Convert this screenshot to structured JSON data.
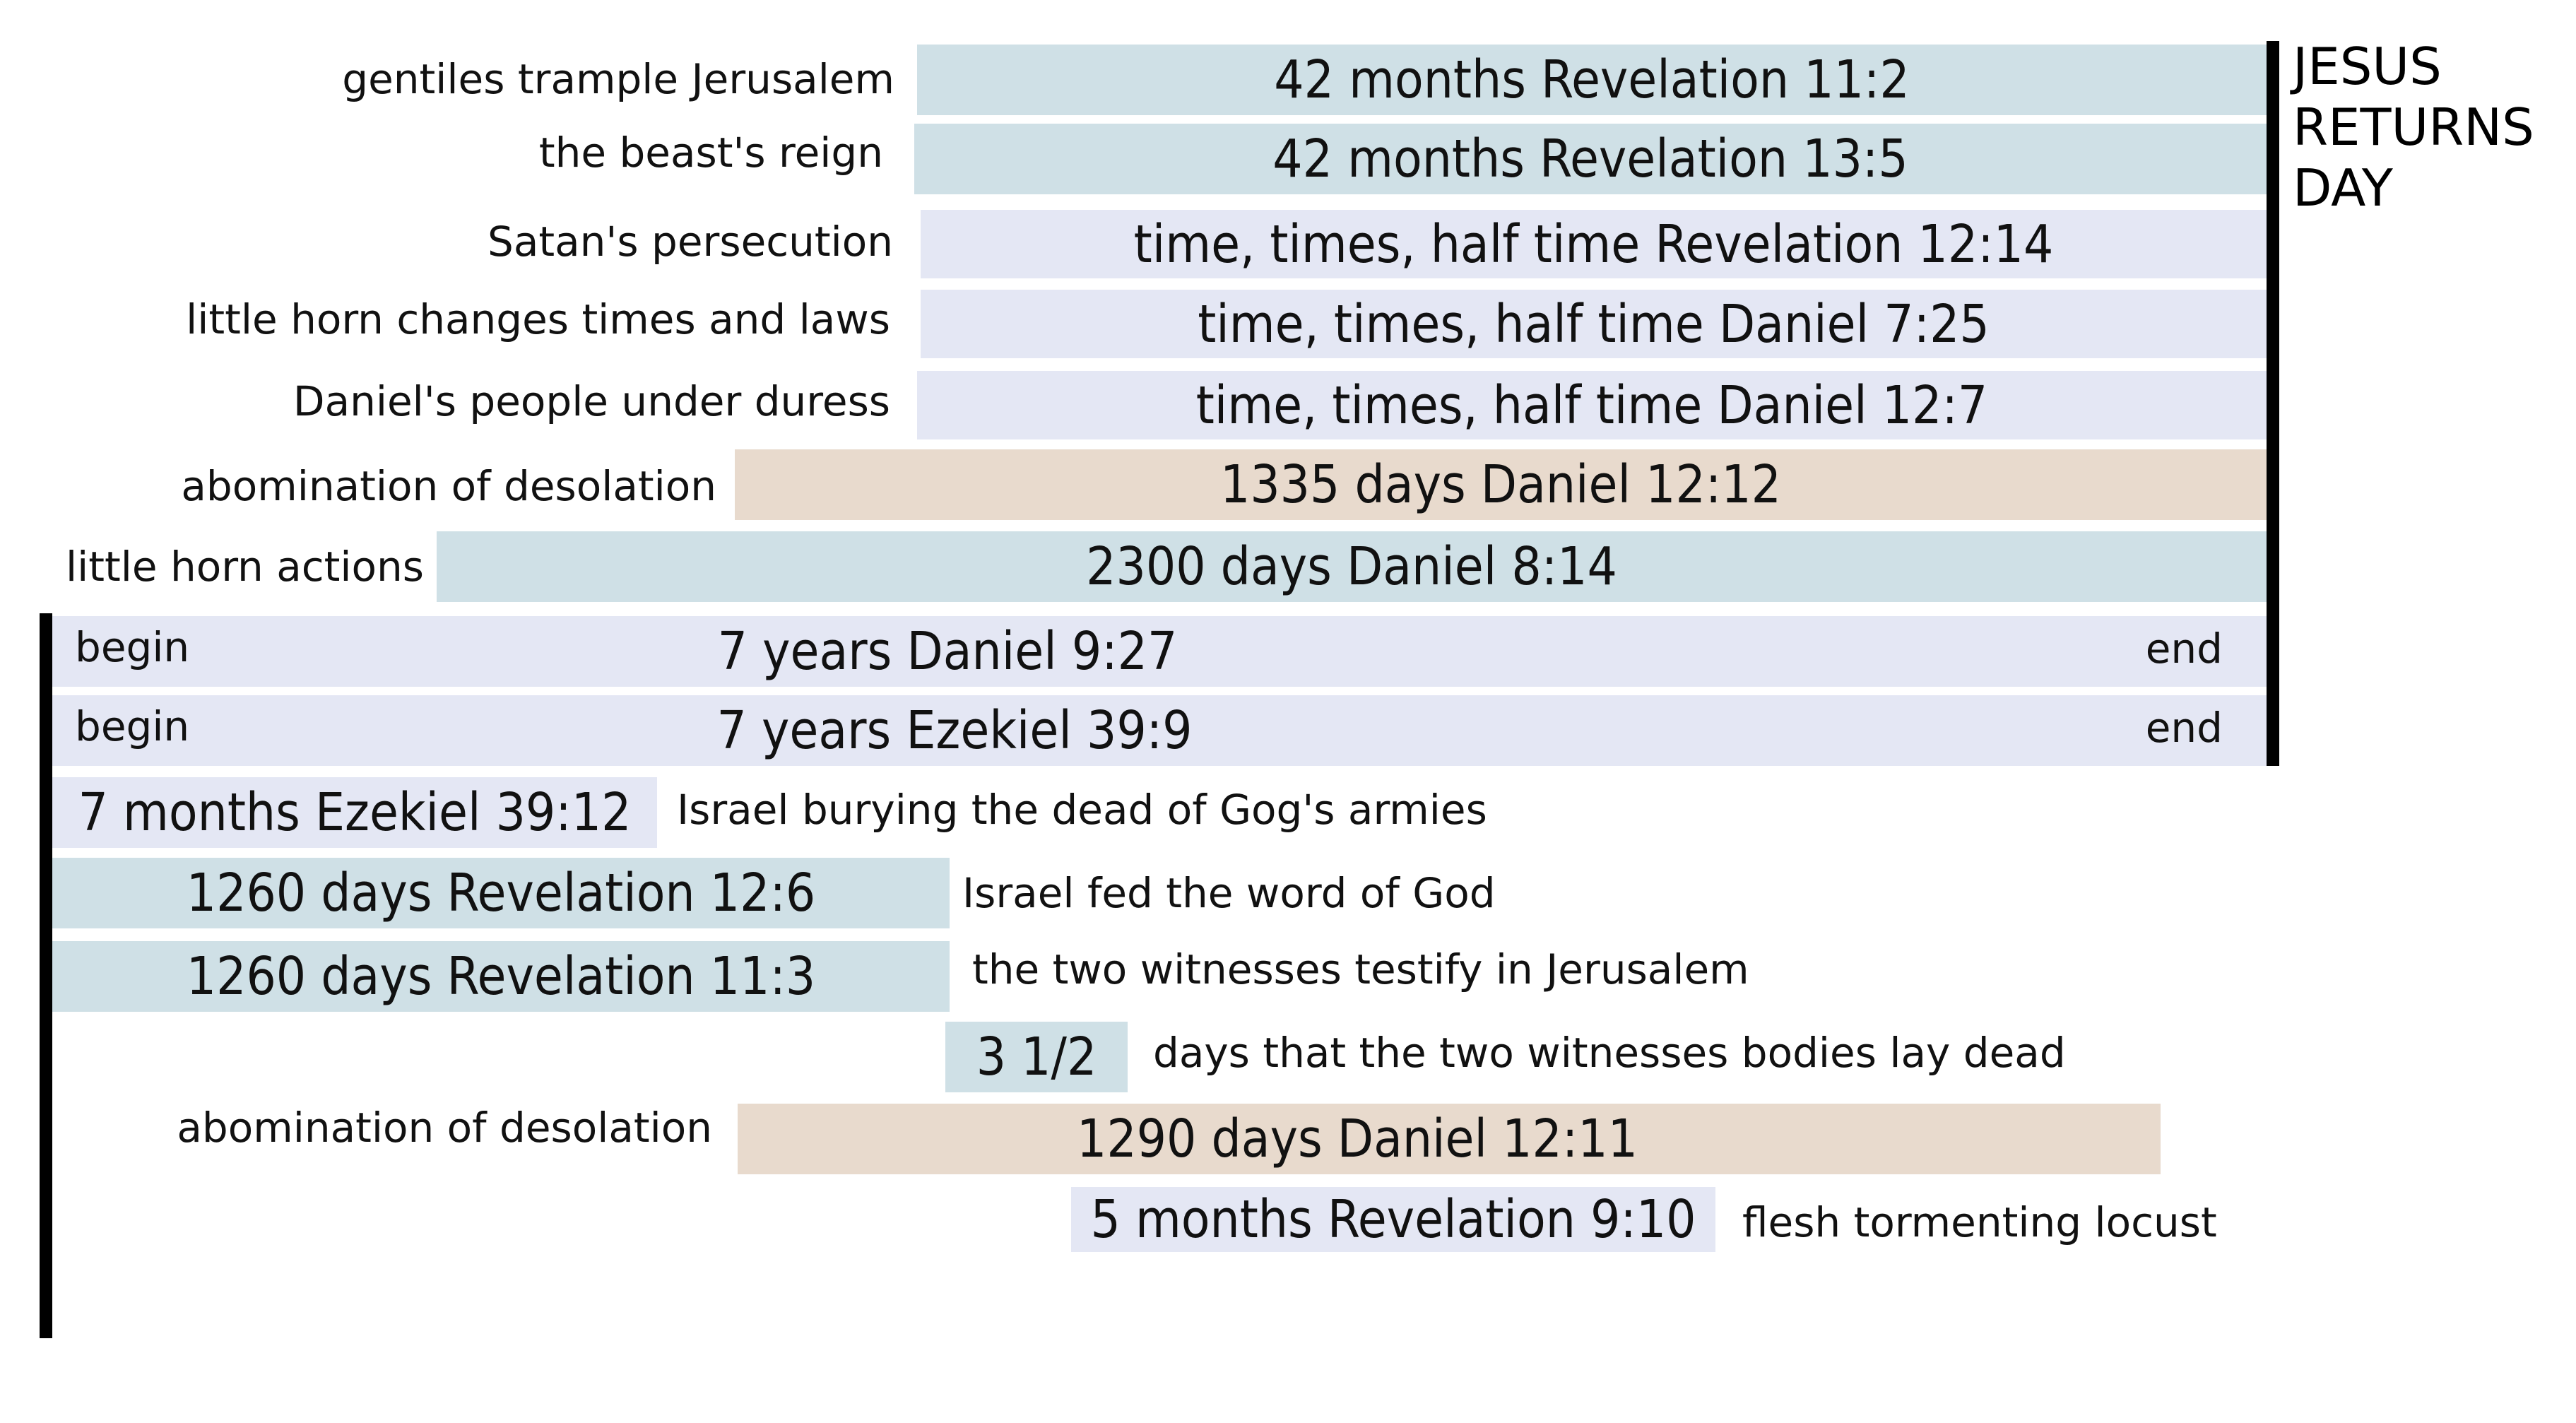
{
  "returns": {
    "lines": [
      "JESUS",
      "RETURNS",
      "DAY"
    ]
  },
  "rows": [
    {
      "id": "r1",
      "label": "gentiles trample Jerusalem",
      "bar": "42 months  Revelation 11:2",
      "color": "#cfe0e6"
    },
    {
      "id": "r2",
      "label": "the beast's reign",
      "bar": "42 months  Revelation 13:5",
      "color": "#cfe0e6"
    },
    {
      "id": "r3",
      "label": "Satan's persecution",
      "bar": "time, times, half time   Revelation 12:14",
      "color": "#e4e7f4"
    },
    {
      "id": "r4",
      "label": "little horn changes times and laws",
      "bar": "time, times, half time   Daniel  7:25",
      "color": "#e4e7f4"
    },
    {
      "id": "r5",
      "label": "Daniel's people under duress",
      "bar": "time, times, half time   Daniel 12:7",
      "color": "#e4e7f4"
    },
    {
      "id": "r6",
      "label": "abomination of desolation",
      "bar": "1335 days   Daniel 12:12",
      "color": "#e8dacd"
    },
    {
      "id": "r7",
      "label": "little horn actions",
      "bar": "2300 days  Daniel 8:14",
      "color": "#cfe0e6"
    },
    {
      "id": "r8",
      "begin": "begin",
      "bar": "7 years    Daniel 9:27",
      "end": "end",
      "color": "#e4e7f4"
    },
    {
      "id": "r9",
      "begin": "begin",
      "bar": "7 years    Ezekiel 39:9",
      "end": "end",
      "color": "#e4e7f4"
    },
    {
      "id": "r10",
      "bar": "7 months  Ezekiel 39:12",
      "note": "Israel burying the dead of Gog's armies",
      "color": "#e4e7f4"
    },
    {
      "id": "r11",
      "bar": "1260 days  Revelation 12:6",
      "note": "Israel fed the word of God",
      "color": "#cfe0e6"
    },
    {
      "id": "r12",
      "bar": "1260 days  Revelation 11:3",
      "note": "the two witnesses testify in Jerusalem",
      "color": "#cfe0e6"
    },
    {
      "id": "r13",
      "bar": "3 1/2",
      "note": "days that the two witnesses bodies lay dead",
      "color": "#cfe0e6"
    },
    {
      "id": "r14",
      "label": "abomination of desolation",
      "bar": "1290 days  Daniel 12:11",
      "color": "#e8dacd"
    },
    {
      "id": "r15",
      "bar": "5 months Revelation 9:10",
      "note": "flesh tormenting locust",
      "color": "#e4e7f4"
    }
  ]
}
